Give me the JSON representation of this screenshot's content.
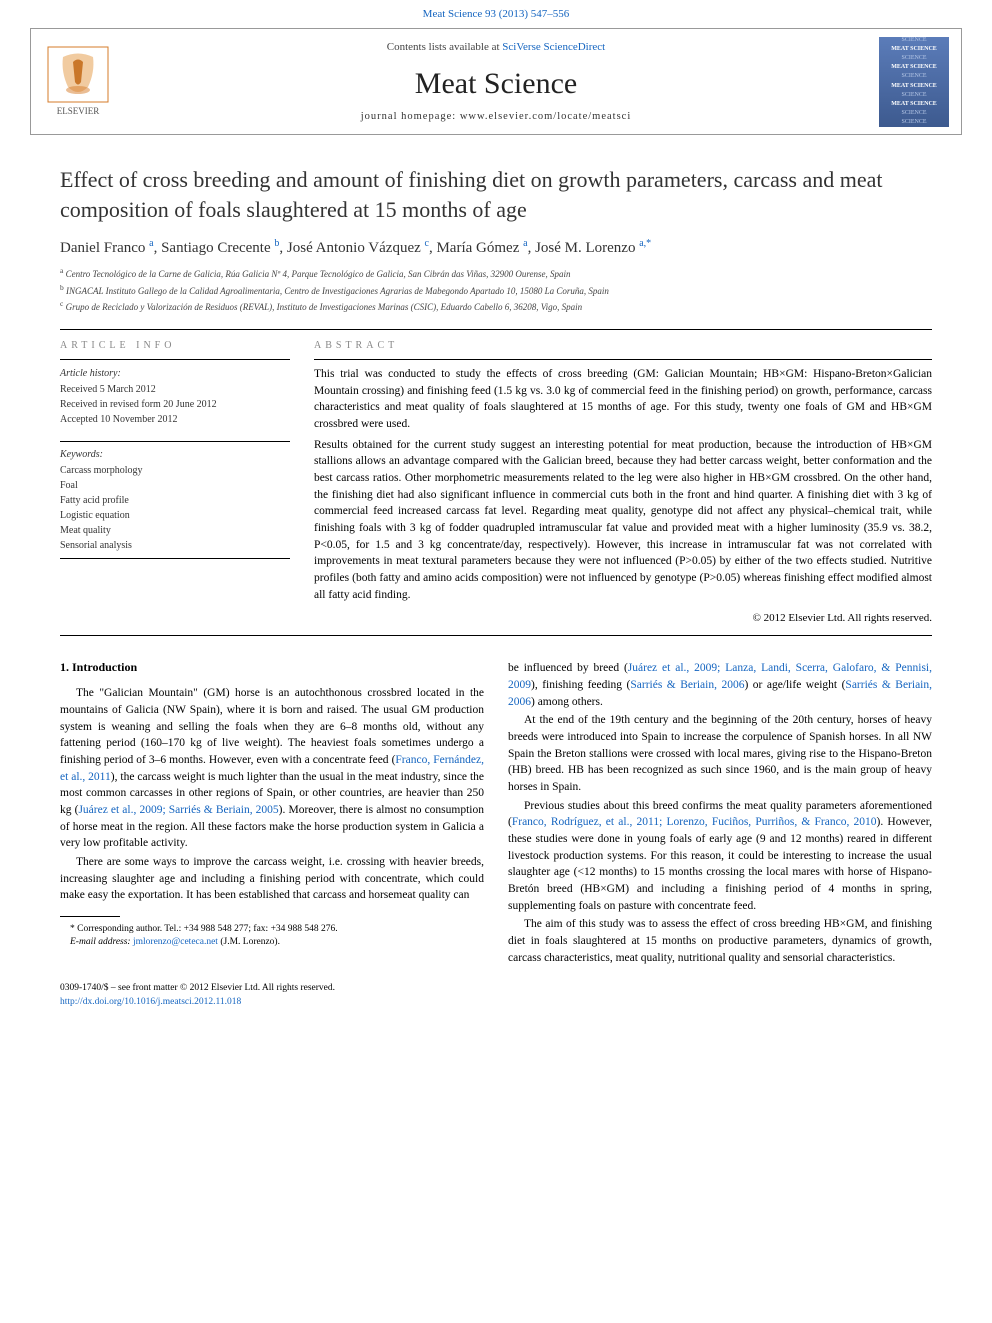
{
  "top_link": {
    "journal": "Meat Science 93 (2013) 547–556"
  },
  "header": {
    "contents_prefix": "Contents lists available at ",
    "contents_link": "SciVerse ScienceDirect",
    "journal_name": "Meat Science",
    "homepage_prefix": "journal homepage: ",
    "homepage_url": "www.elsevier.com/locate/meatsci",
    "cover_lines": [
      "SCIENCE",
      "MEAT SCIENCE",
      "SCIENCE",
      "MEAT SCIENCE",
      "SCIENCE",
      "MEAT SCIENCE",
      "SCIENCE",
      "MEAT SCIENCE",
      "SCIENCE",
      "SCIENCE"
    ]
  },
  "article": {
    "title": "Effect of cross breeding and amount of finishing diet on growth parameters, carcass and meat composition of foals slaughtered at 15 months of age",
    "authors_html": "Daniel Franco <sup class='sup-link'>a</sup>, Santiago Crecente <sup class='sup-link'>b</sup>, José Antonio Vázquez <sup class='sup-link'>c</sup>, María Gómez <sup class='sup-link'>a</sup>, José M. Lorenzo <sup class='sup-link'>a,*</sup>",
    "affiliations": [
      {
        "sup": "a",
        "text": "Centro Tecnológico de la Carne de Galicia, Rúa Galicia Nº 4, Parque Tecnológico de Galicia, San Cibrán das Viñas, 32900 Ourense, Spain"
      },
      {
        "sup": "b",
        "text": "INGACAL Instituto Gallego de la Calidad Agroalimentaria, Centro de Investigaciones Agrarias de Mabegondo Apartado 10, 15080 La Coruña, Spain"
      },
      {
        "sup": "c",
        "text": "Grupo de Reciclado y Valorización de Residuos (REVAL), Instituto de Investigaciones Marinas (CSIC), Eduardo Cabello 6, 36208, Vigo, Spain"
      }
    ]
  },
  "info": {
    "heading": "ARTICLE INFO",
    "history_label": "Article history:",
    "history": [
      "Received 5 March 2012",
      "Received in revised form 20 June 2012",
      "Accepted 10 November 2012"
    ],
    "keywords_label": "Keywords:",
    "keywords": [
      "Carcass morphology",
      "Foal",
      "Fatty acid profile",
      "Logistic equation",
      "Meat quality",
      "Sensorial analysis"
    ]
  },
  "abstract": {
    "heading": "ABSTRACT",
    "para1": "This trial was conducted to study the effects of cross breeding (GM: Galician Mountain; HB×GM: Hispano-Breton×Galician Mountain crossing) and finishing feed (1.5 kg vs. 3.0 kg of commercial feed in the finishing period) on growth, performance, carcass characteristics and meat quality of foals slaughtered at 15 months of age. For this study, twenty one foals of GM and HB×GM crossbred were used.",
    "para2": "Results obtained for the current study suggest an interesting potential for meat production, because the introduction of HB×GM stallions allows an advantage compared with the Galician breed, because they had better carcass weight, better conformation and the best carcass ratios. Other morphometric measurements related to the leg were also higher in HB×GM crossbred. On the other hand, the finishing diet had also significant influence in commercial cuts both in the front and hind quarter. A finishing diet with 3 kg of commercial feed increased carcass fat level. Regarding meat quality, genotype did not affect any physical–chemical trait, while finishing foals with 3 kg of fodder quadrupled intramuscular fat value and provided meat with a higher luminosity (35.9 vs. 38.2, P<0.05, for 1.5 and 3 kg concentrate/day, respectively). However, this increase in intramuscular fat was not correlated with improvements in meat textural parameters because they were not influenced (P>0.05) by either of the two effects studied. Nutritive profiles (both fatty and amino acids composition) were not influenced by genotype (P>0.05) whereas finishing effect modified almost all fatty acid finding.",
    "copyright": "© 2012 Elsevier Ltd. All rights reserved."
  },
  "intro": {
    "heading": "1. Introduction",
    "left_p1_pre": "The \"Galician Mountain\" (GM) horse is an autochthonous crossbred located in the mountains of Galicia (NW Spain), where it is born and raised. The usual GM production system is weaning and selling the foals when they are 6–8 months old, without any fattening period (160–170 kg of live weight). The heaviest foals sometimes undergo a finishing period of 3–6 months. However, even with a concentrate feed (",
    "left_p1_link1": "Franco, Fernández, et al., 2011",
    "left_p1_mid": "), the carcass weight is much lighter than the usual in the meat industry, since the most common carcasses in other regions of Spain, or other countries, are heavier than 250 kg (",
    "left_p1_link2": "Juárez et al., 2009; Sarriés & Beriain, 2005",
    "left_p1_post": "). Moreover, there is almost no consumption of horse meat in the region. All these factors make the horse production system in Galicia a very low profitable activity.",
    "left_p2": "There are some ways to improve the carcass weight, i.e. crossing with heavier breeds, increasing slaughter age and including a finishing period with concentrate, which could make easy the exportation. It has been established that carcass and horsemeat quality can",
    "right_p1_pre": "be influenced by breed (",
    "right_p1_link1": "Juárez et al., 2009; Lanza, Landi, Scerra, Galofaro, & Pennisi, 2009",
    "right_p1_mid1": "), finishing feeding (",
    "right_p1_link2": "Sarriés & Beriain, 2006",
    "right_p1_mid2": ") or age/life weight (",
    "right_p1_link3": "Sarriés & Beriain, 2006",
    "right_p1_post": ") among others.",
    "right_p2": "At the end of the 19th century and the beginning of the 20th century, horses of heavy breeds were introduced into Spain to increase the corpulence of Spanish horses. In all NW Spain the Breton stallions were crossed with local mares, giving rise to the Hispano-Breton (HB) breed. HB has been recognized as such since 1960, and is the main group of heavy horses in Spain.",
    "right_p3_pre": "Previous studies about this breed confirms the meat quality parameters aforementioned (",
    "right_p3_link": "Franco, Rodríguez, et al., 2011; Lorenzo, Fuciños, Purriños, & Franco, 2010",
    "right_p3_post": "). However, these studies were done in young foals of early age (9 and 12 months) reared in different livestock production systems. For this reason, it could be interesting to increase the usual slaughter age (<12 months) to 15 months crossing the local mares with horse of Hispano-Bretón breed (HB×GM) and including a finishing period of 4 months in spring, supplementing foals on pasture with concentrate feed.",
    "right_p4": "The aim of this study was to assess the effect of cross breeding HB×GM, and finishing diet in foals slaughtered at 15 months on productive parameters, dynamics of growth, carcass characteristics, meat quality, nutritional quality and sensorial characteristics."
  },
  "footnote": {
    "corresponding": "* Corresponding author. Tel.: +34 988 548 277; fax: +34 988 548 276.",
    "email_label": "E-mail address: ",
    "email": "jmlorenzo@ceteca.net",
    "email_suffix": " (J.M. Lorenzo)."
  },
  "bottom": {
    "issn_line": "0309-1740/$ – see front matter © 2012 Elsevier Ltd. All rights reserved.",
    "doi": "http://dx.doi.org/10.1016/j.meatsci.2012.11.018"
  },
  "colors": {
    "link": "#1565c0",
    "text": "#000000",
    "muted": "#888888"
  }
}
